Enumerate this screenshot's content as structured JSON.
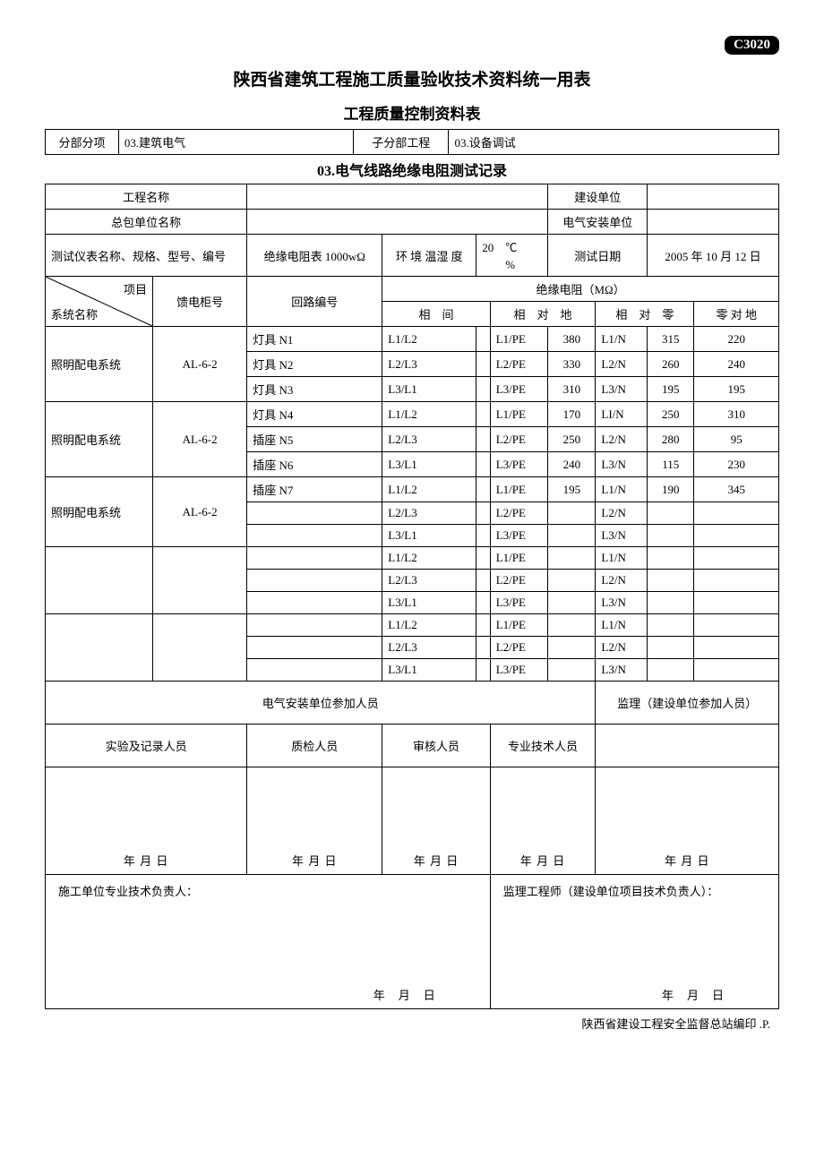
{
  "code": "C3020",
  "title_main": "陕西省建筑工程施工质量验收技术资料统一用表",
  "title_sub": "工程质量控制资料表",
  "section_row": {
    "label_1": "分部分项",
    "value_1": "03.建筑电气",
    "label_2": "子分部工程",
    "value_2": "03.设备调试"
  },
  "record_title": "03.电气线路绝缘电阻测试记录",
  "info": {
    "project_name_label": "工程名称",
    "project_name": "",
    "build_unit_label": "建设单位",
    "build_unit": "",
    "contractor_label": "总包单位名称",
    "contractor": "",
    "elec_install_label": "电气安装单位",
    "elec_install": "",
    "instrument_label": "测试仪表名称、规格、型号、编号",
    "instrument_value": "绝缘电阻表 1000wΩ",
    "env_label": "环 境 温湿 度",
    "env_temp": "20",
    "env_temp_unit": "℃",
    "env_hum_unit": "%",
    "test_date_label": "测试日期",
    "test_date": "2005 年 10 月 12 日"
  },
  "table_header": {
    "diag_top": "项目",
    "diag_bot": "系统名称",
    "col_feed": "馈电柜号",
    "col_circuit": "回路编号",
    "group": "绝缘电阻（MΩ）",
    "phase_phase": "相　间",
    "phase_ground": "相　对　地",
    "phase_neutral": "相　对　零",
    "neutral_ground": "零 对 地"
  },
  "rows": [
    {
      "sys": "照明配电系统",
      "feed": "AL-6-2",
      "circuit": "灯具 N1",
      "pp": "L1/L2",
      "ppv": "",
      "pg": "L1/PE",
      "pgv": "380",
      "pn": "L1/N",
      "pnv": "315",
      "ng": "220"
    },
    {
      "sys": "",
      "feed": "",
      "circuit": "灯具 N2",
      "pp": "L2/L3",
      "ppv": "",
      "pg": "L2/PE",
      "pgv": "330",
      "pn": "L2/N",
      "pnv": "260",
      "ng": "240"
    },
    {
      "sys": "",
      "feed": "",
      "circuit": "灯具 N3",
      "pp": "L3/L1",
      "ppv": "",
      "pg": "L3/PE",
      "pgv": "310",
      "pn": "L3/N",
      "pnv": "195",
      "ng": "195"
    },
    {
      "sys": "照明配电系统",
      "feed": "AL-6-2",
      "circuit": "灯具 N4",
      "pp": "L1/L2",
      "ppv": "",
      "pg": "L1/PE",
      "pgv": "170",
      "pn": "LI/N",
      "pnv": "250",
      "ng": "310"
    },
    {
      "sys": "",
      "feed": "",
      "circuit": "插座 N5",
      "pp": "L2/L3",
      "ppv": "",
      "pg": "L2/PE",
      "pgv": "250",
      "pn": "L2/N",
      "pnv": "280",
      "ng": "95"
    },
    {
      "sys": "",
      "feed": "",
      "circuit": "插座 N6",
      "pp": "L3/L1",
      "ppv": "",
      "pg": "L3/PE",
      "pgv": "240",
      "pn": "L3/N",
      "pnv": "115",
      "ng": "230"
    },
    {
      "sys": "照明配电系统",
      "feed": "AL-6-2",
      "circuit": "插座 N7",
      "pp": "L1/L2",
      "ppv": "",
      "pg": "L1/PE",
      "pgv": "195",
      "pn": "L1/N",
      "pnv": "190",
      "ng": "345"
    },
    {
      "sys": "",
      "feed": "",
      "circuit": "",
      "pp": "L2/L3",
      "ppv": "",
      "pg": "L2/PE",
      "pgv": "",
      "pn": "L2/N",
      "pnv": "",
      "ng": ""
    },
    {
      "sys": "",
      "feed": "",
      "circuit": "",
      "pp": "L3/L1",
      "ppv": "",
      "pg": "L3/PE",
      "pgv": "",
      "pn": "L3/N",
      "pnv": "",
      "ng": ""
    },
    {
      "sys": "",
      "feed": "",
      "circuit": "",
      "pp": "L1/L2",
      "ppv": "",
      "pg": "L1/PE",
      "pgv": "",
      "pn": "L1/N",
      "pnv": "",
      "ng": ""
    },
    {
      "sys": "",
      "feed": "",
      "circuit": "",
      "pp": "L2/L3",
      "ppv": "",
      "pg": "L2/PE",
      "pgv": "",
      "pn": "L2/N",
      "pnv": "",
      "ng": ""
    },
    {
      "sys": "",
      "feed": "",
      "circuit": "",
      "pp": "L3/L1",
      "ppv": "",
      "pg": "L3/PE",
      "pgv": "",
      "pn": "L3/N",
      "pnv": "",
      "ng": ""
    },
    {
      "sys": "",
      "feed": "",
      "circuit": "",
      "pp": "L1/L2",
      "ppv": "",
      "pg": "L1/PE",
      "pgv": "",
      "pn": "L1/N",
      "pnv": "",
      "ng": ""
    },
    {
      "sys": "",
      "feed": "",
      "circuit": "",
      "pp": "L2/L3",
      "ppv": "",
      "pg": "L2/PE",
      "pgv": "",
      "pn": "L2/N",
      "pnv": "",
      "ng": ""
    },
    {
      "sys": "",
      "feed": "",
      "circuit": "",
      "pp": "L3/L1",
      "ppv": "",
      "pg": "L3/PE",
      "pgv": "",
      "pn": "L3/N",
      "pnv": "",
      "ng": ""
    }
  ],
  "participants": {
    "elec_install_label": "电气安装单位参加人员",
    "supervisor_label": "监理（建设单位参加人员）",
    "col_1": "实验及记录人员",
    "col_2": "质检人员",
    "col_3": "审核人员",
    "col_4": "专业技术人员",
    "date_str": "年 月 日"
  },
  "responsible": {
    "left_label": "施工单位专业技术负责人：",
    "right_label": "监理工程师（建设单位项目技术负责人）：",
    "date_str": "年　月　日"
  },
  "footer_note": "陕西省建设工程安全监督总站编印 .P."
}
